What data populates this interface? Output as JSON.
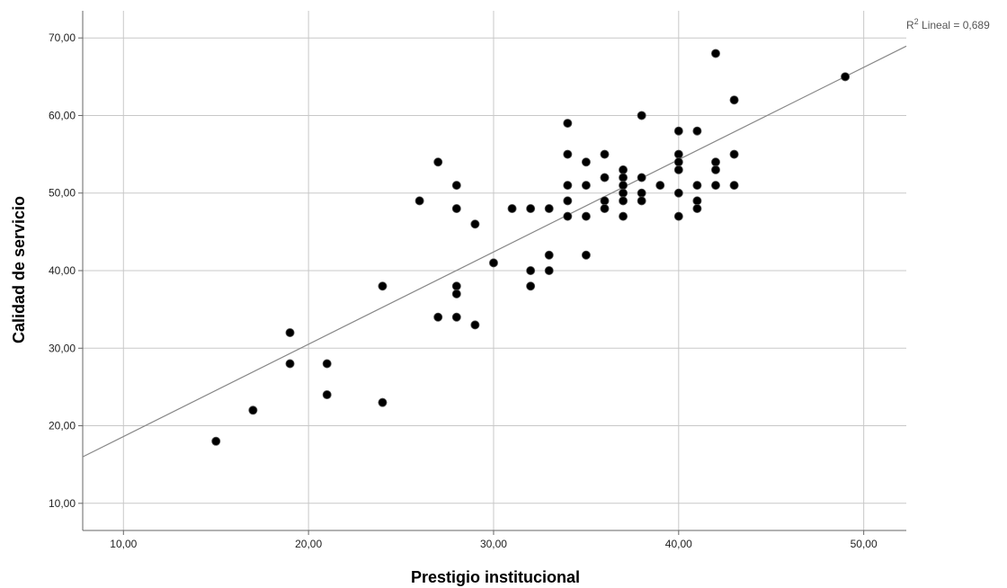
{
  "chart_data": {
    "type": "scatter",
    "xlabel": "Prestigio institucional",
    "ylabel": "Calidad de servicio",
    "xlim": [
      7.8,
      52.3
    ],
    "ylim": [
      6.5,
      73.5
    ],
    "x_ticks": [
      10,
      20,
      30,
      40,
      50
    ],
    "y_ticks": [
      10,
      20,
      30,
      40,
      50,
      60,
      70
    ],
    "x_tick_labels": [
      "10,00",
      "20,00",
      "30,00",
      "40,00",
      "50,00"
    ],
    "y_tick_labels": [
      "10,00",
      "20,00",
      "30,00",
      "40,00",
      "50,00",
      "60,00",
      "70,00"
    ],
    "grid": true,
    "fit_line": {
      "label_base": "R",
      "label_sup": "2",
      "label_text": " Lineal = 0,689",
      "intercept": 6.71,
      "slope": 1.19
    },
    "points": [
      [
        15,
        18
      ],
      [
        17,
        22
      ],
      [
        19,
        32
      ],
      [
        19,
        28
      ],
      [
        21,
        28
      ],
      [
        21,
        24
      ],
      [
        24,
        38
      ],
      [
        24,
        23
      ],
      [
        26,
        49
      ],
      [
        27,
        54
      ],
      [
        27,
        34
      ],
      [
        28,
        51
      ],
      [
        28,
        48
      ],
      [
        28,
        38
      ],
      [
        28,
        37
      ],
      [
        28,
        34
      ],
      [
        29,
        46
      ],
      [
        29,
        33
      ],
      [
        30,
        41
      ],
      [
        31,
        48
      ],
      [
        32,
        48
      ],
      [
        32,
        40
      ],
      [
        32,
        38
      ],
      [
        33,
        48
      ],
      [
        33,
        42
      ],
      [
        33,
        40
      ],
      [
        34,
        59
      ],
      [
        34,
        55
      ],
      [
        34,
        51
      ],
      [
        34,
        49
      ],
      [
        34,
        47
      ],
      [
        35,
        54
      ],
      [
        35,
        51
      ],
      [
        35,
        47
      ],
      [
        35,
        42
      ],
      [
        36,
        55
      ],
      [
        36,
        52
      ],
      [
        36,
        49
      ],
      [
        36,
        48
      ],
      [
        37,
        53
      ],
      [
        37,
        52
      ],
      [
        37,
        51
      ],
      [
        37,
        50
      ],
      [
        37,
        49
      ],
      [
        37,
        47
      ],
      [
        38,
        60
      ],
      [
        38,
        52
      ],
      [
        38,
        50
      ],
      [
        38,
        49
      ],
      [
        39,
        51
      ],
      [
        40,
        58
      ],
      [
        40,
        55
      ],
      [
        40,
        54
      ],
      [
        40,
        53
      ],
      [
        40,
        50
      ],
      [
        40,
        47
      ],
      [
        41,
        58
      ],
      [
        41,
        51
      ],
      [
        41,
        49
      ],
      [
        41,
        48
      ],
      [
        42,
        68
      ],
      [
        42,
        54
      ],
      [
        42,
        53
      ],
      [
        42,
        51
      ],
      [
        43,
        62
      ],
      [
        43,
        55
      ],
      [
        43,
        51
      ],
      [
        49,
        65
      ]
    ]
  }
}
